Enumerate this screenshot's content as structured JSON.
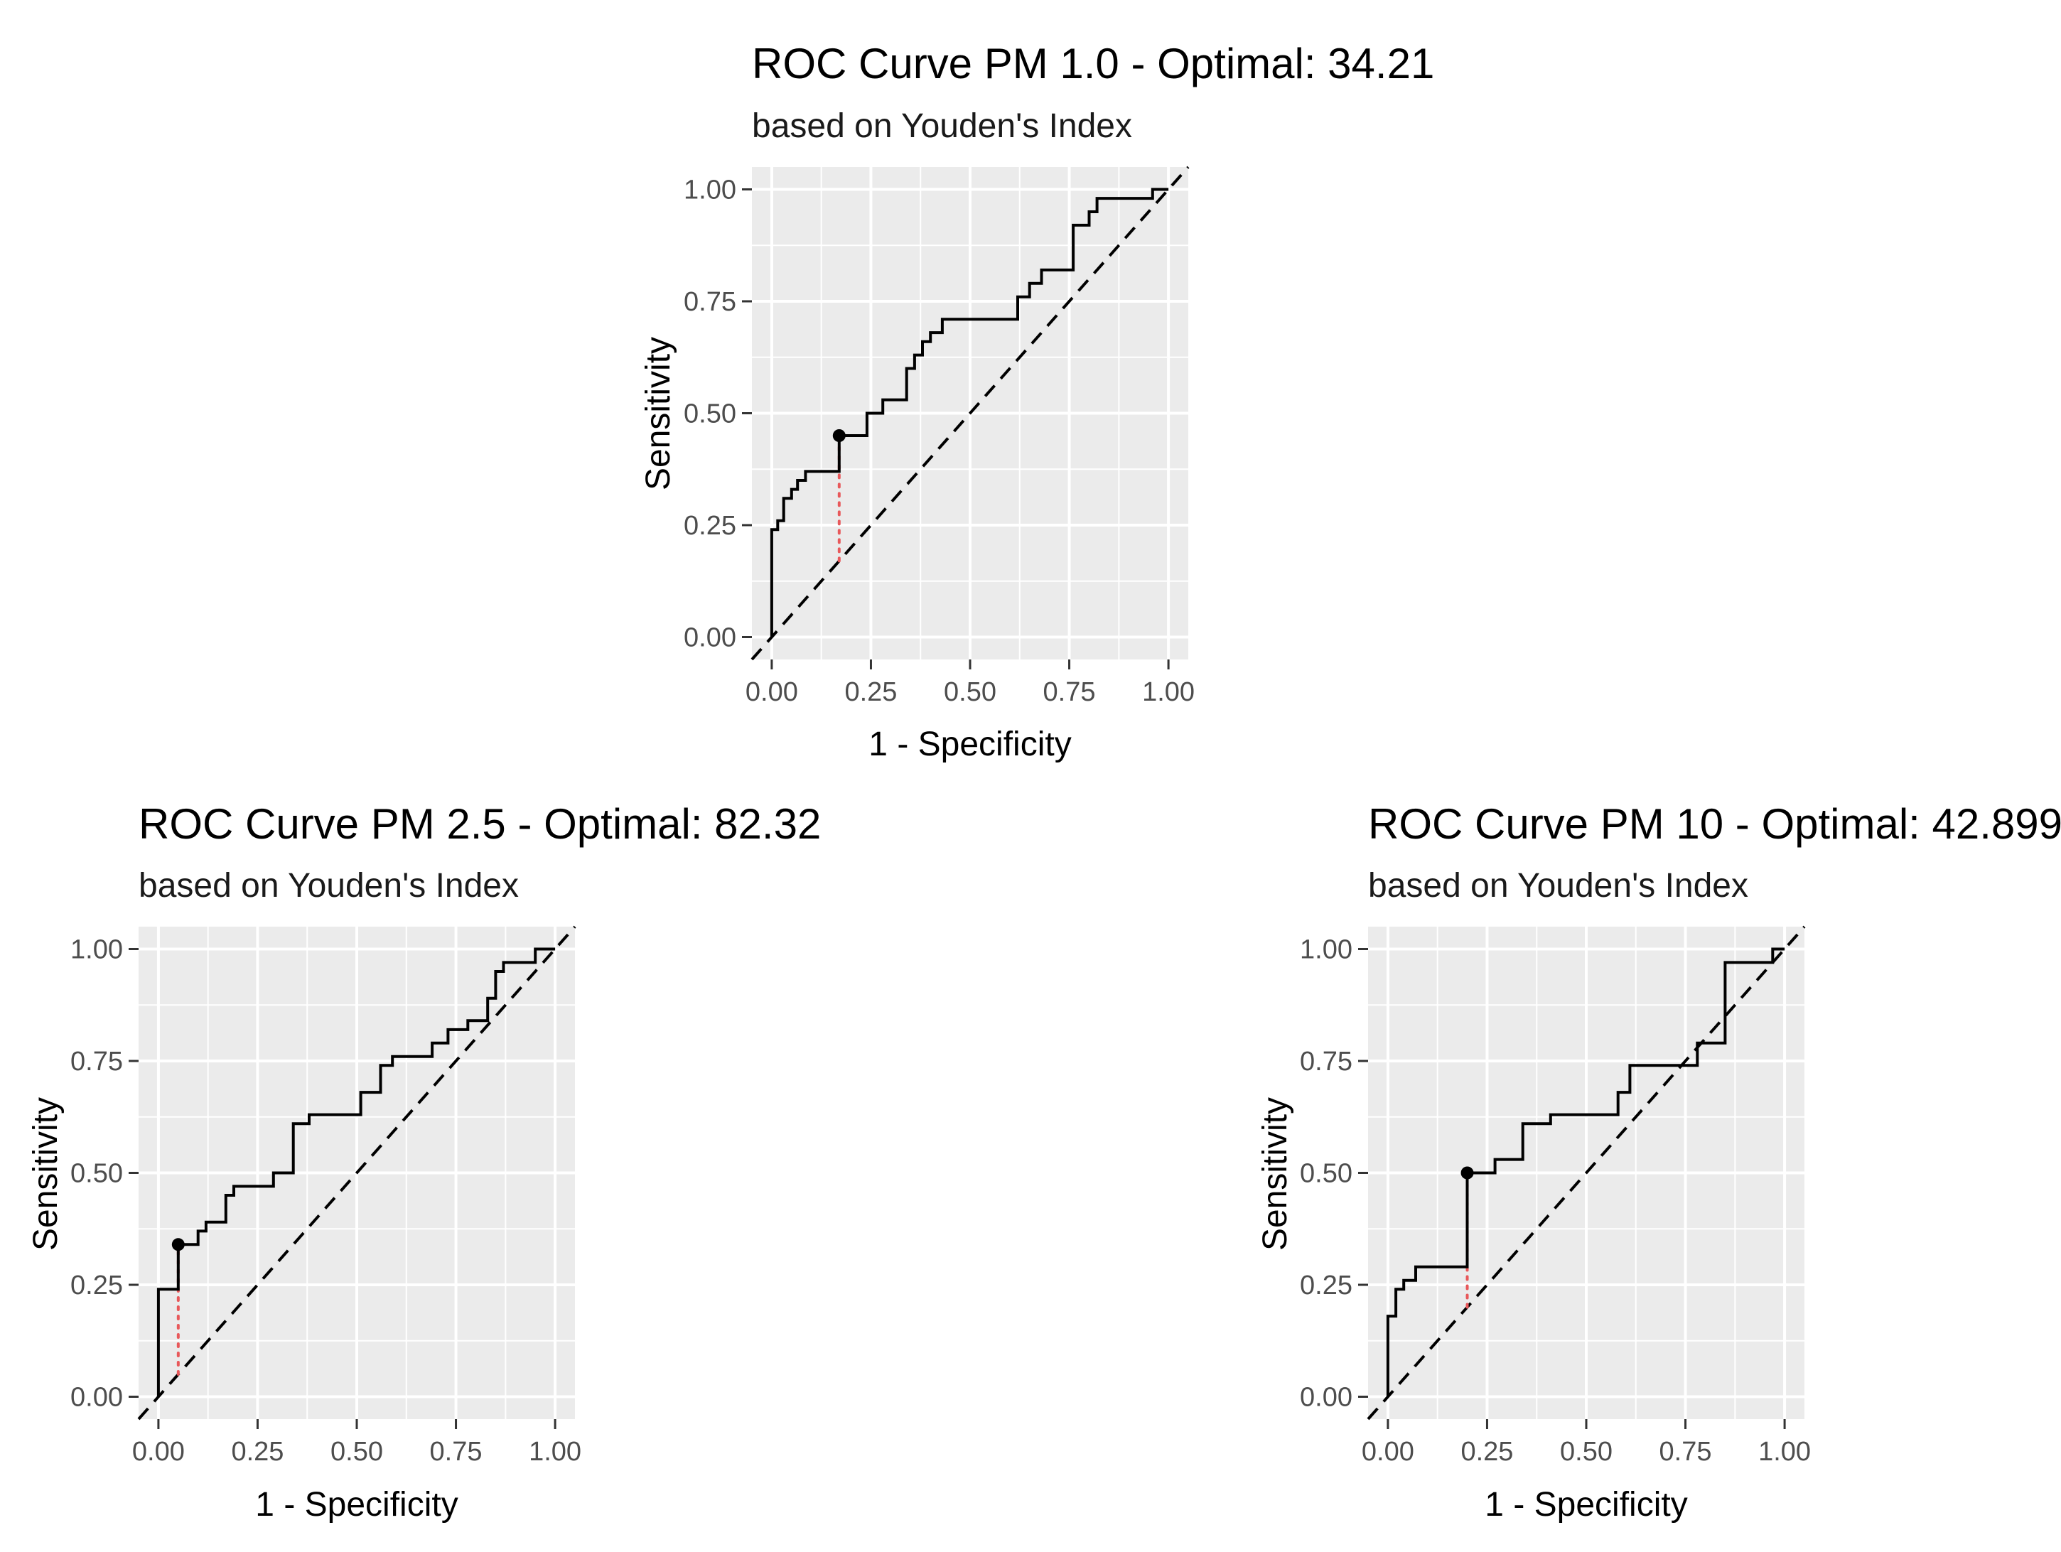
{
  "chart_data": [
    {
      "type": "line",
      "title": "ROC Curve PM 1.0 - Optimal: 34.21",
      "subtitle": "based on Youden's Index",
      "xlabel": "1 - Specificity",
      "ylabel": "Sensitivity",
      "xlim": [
        0,
        1
      ],
      "ylim": [
        0,
        1
      ],
      "x_ticks": [
        "0.00",
        "0.25",
        "0.50",
        "0.75",
        "1.00"
      ],
      "y_ticks": [
        "0.00",
        "0.25",
        "0.50",
        "0.75",
        "1.00"
      ],
      "grid": true,
      "series": [
        {
          "name": "roc",
          "x": [
            0,
            0,
            0.015,
            0.015,
            0.03,
            0.03,
            0.05,
            0.05,
            0.065,
            0.065,
            0.085,
            0.085,
            0.1,
            0.1,
            0.17,
            0.17,
            0.24,
            0.24,
            0.28,
            0.28,
            0.34,
            0.34,
            0.36,
            0.36,
            0.38,
            0.38,
            0.4,
            0.4,
            0.43,
            0.43,
            0.62,
            0.62,
            0.65,
            0.65,
            0.68,
            0.68,
            0.76,
            0.76,
            0.8,
            0.8,
            0.82,
            0.82,
            0.96,
            0.96,
            1.0
          ],
          "y": [
            0,
            0.24,
            0.24,
            0.26,
            0.26,
            0.31,
            0.31,
            0.33,
            0.33,
            0.35,
            0.35,
            0.37,
            0.37,
            0.37,
            0.37,
            0.45,
            0.45,
            0.5,
            0.5,
            0.53,
            0.53,
            0.6,
            0.6,
            0.63,
            0.63,
            0.66,
            0.66,
            0.68,
            0.68,
            0.71,
            0.71,
            0.76,
            0.76,
            0.79,
            0.79,
            0.82,
            0.82,
            0.92,
            0.92,
            0.95,
            0.95,
            0.98,
            0.98,
            1.0,
            1.0
          ]
        }
      ],
      "reference_line": {
        "x": [
          0,
          1
        ],
        "y": [
          0,
          1
        ]
      },
      "optimal_point": {
        "x": 0.17,
        "y": 0.45
      },
      "youden_segment": {
        "x": 0.17,
        "y_from": 0.17,
        "y_to": 0.45
      }
    },
    {
      "type": "line",
      "title": "ROC Curve PM 2.5 - Optimal: 82.32",
      "subtitle": "based on Youden's Index",
      "xlabel": "1 - Specificity",
      "ylabel": "Sensitivity",
      "xlim": [
        0,
        1
      ],
      "ylim": [
        0,
        1
      ],
      "x_ticks": [
        "0.00",
        "0.25",
        "0.50",
        "0.75",
        "1.00"
      ],
      "y_ticks": [
        "0.00",
        "0.25",
        "0.50",
        "0.75",
        "1.00"
      ],
      "grid": true,
      "series": [
        {
          "name": "roc",
          "x": [
            0,
            0,
            0.05,
            0.05,
            0.1,
            0.1,
            0.12,
            0.12,
            0.17,
            0.17,
            0.19,
            0.19,
            0.29,
            0.29,
            0.34,
            0.34,
            0.38,
            0.38,
            0.51,
            0.51,
            0.56,
            0.56,
            0.59,
            0.59,
            0.69,
            0.69,
            0.73,
            0.73,
            0.78,
            0.78,
            0.83,
            0.83,
            0.85,
            0.85,
            0.87,
            0.87,
            0.95,
            0.95,
            1.0
          ],
          "y": [
            0,
            0.24,
            0.24,
            0.34,
            0.34,
            0.37,
            0.37,
            0.39,
            0.39,
            0.45,
            0.45,
            0.47,
            0.47,
            0.5,
            0.5,
            0.61,
            0.61,
            0.63,
            0.63,
            0.68,
            0.68,
            0.74,
            0.74,
            0.76,
            0.76,
            0.79,
            0.79,
            0.82,
            0.82,
            0.84,
            0.84,
            0.89,
            0.89,
            0.95,
            0.95,
            0.97,
            0.97,
            1.0,
            1.0
          ]
        }
      ],
      "reference_line": {
        "x": [
          0,
          1
        ],
        "y": [
          0,
          1
        ]
      },
      "optimal_point": {
        "x": 0.05,
        "y": 0.34
      },
      "youden_segment": {
        "x": 0.05,
        "y_from": 0.05,
        "y_to": 0.34
      }
    },
    {
      "type": "line",
      "title": "ROC Curve PM 10 - Optimal: 42.899",
      "subtitle": "based on Youden's Index",
      "xlabel": "1 - Specificity",
      "ylabel": "Sensitivity",
      "xlim": [
        0,
        1
      ],
      "ylim": [
        0,
        1
      ],
      "x_ticks": [
        "0.00",
        "0.25",
        "0.50",
        "0.75",
        "1.00"
      ],
      "y_ticks": [
        "0.00",
        "0.25",
        "0.50",
        "0.75",
        "1.00"
      ],
      "grid": true,
      "series": [
        {
          "name": "roc",
          "x": [
            0,
            0,
            0.02,
            0.02,
            0.04,
            0.04,
            0.07,
            0.07,
            0.2,
            0.2,
            0.27,
            0.27,
            0.34,
            0.34,
            0.41,
            0.41,
            0.58,
            0.58,
            0.61,
            0.61,
            0.78,
            0.78,
            0.85,
            0.85,
            0.97,
            0.97,
            1.0
          ],
          "y": [
            0,
            0.18,
            0.18,
            0.24,
            0.24,
            0.26,
            0.26,
            0.29,
            0.29,
            0.5,
            0.5,
            0.53,
            0.53,
            0.61,
            0.61,
            0.63,
            0.63,
            0.68,
            0.68,
            0.74,
            0.74,
            0.79,
            0.79,
            0.97,
            0.97,
            1.0,
            1.0
          ]
        }
      ],
      "reference_line": {
        "x": [
          0,
          1
        ],
        "y": [
          0,
          1
        ]
      },
      "optimal_point": {
        "x": 0.2,
        "y": 0.5
      },
      "youden_segment": {
        "x": 0.2,
        "y_from": 0.2,
        "y_to": 0.5
      }
    }
  ],
  "colors": {
    "panel_background": "#ebebeb",
    "grid": "#ffffff",
    "curve": "#000000",
    "reference": "#000000",
    "youden_segment": "#e8585a"
  }
}
